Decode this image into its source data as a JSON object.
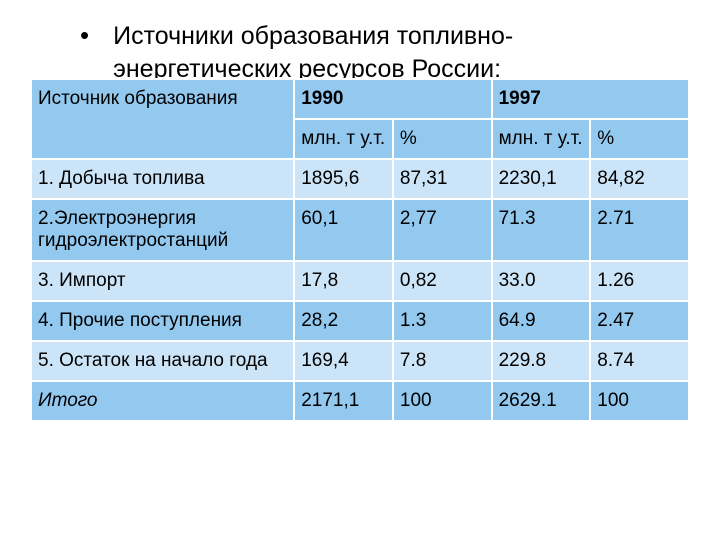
{
  "title": "Источники образования топливно-энергетических ресурсов России:",
  "table": {
    "header": {
      "source": "Источник образования",
      "year1": "1990",
      "year2": "1997",
      "sub_mln": "млн. т у.т.",
      "sub_pct": "%"
    },
    "rows": [
      {
        "label": "1. Добыча топлива",
        "v1": "1895,6",
        "p1": "87,31",
        "v2": "2230,1",
        "p2": "84,82"
      },
      {
        "label": "2.Электроэнергия гидроэлектростанций",
        "v1": "60,1",
        "p1": "2,77",
        "v2": "71.3",
        "p2": "2.71"
      },
      {
        "label": "3. Импорт",
        "v1": "17,8",
        "p1": "0,82",
        "v2": "33.0",
        "p2": "1.26"
      },
      {
        "label": "4. Прочие поступления",
        "v1": "28,2",
        "p1": "1.3",
        "v2": "64.9",
        "p2": "2.47"
      },
      {
        "label": "5. Остаток на начало года",
        "v1": "169,4",
        "p1": "7.8",
        "v2": "229.8",
        "p2": "8.74"
      },
      {
        "label": "Итого",
        "v1": "2171,1",
        "p1": "100",
        "v2": "2629.1",
        "p2": "100"
      }
    ],
    "colors": {
      "light": "#cce4f7",
      "dark": "#93c8ef",
      "border": "#ffffff"
    }
  }
}
